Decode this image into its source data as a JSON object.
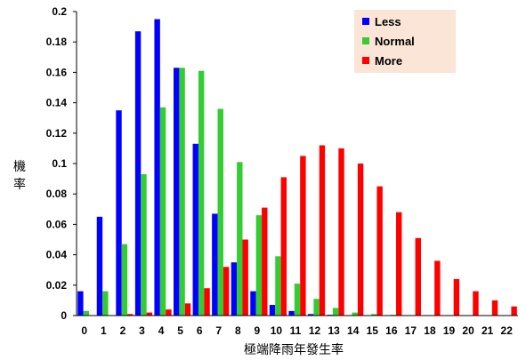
{
  "chart_data": {
    "type": "bar",
    "title": "",
    "xlabel": "極端降雨年發生率",
    "ylabel": "機率",
    "ylim": [
      0,
      0.2
    ],
    "yticks": [
      0,
      0.02,
      0.04,
      0.06,
      0.08,
      0.1,
      0.12,
      0.14,
      0.16,
      0.18,
      0.2
    ],
    "ytick_labels": [
      "0",
      "0.02",
      "0.04",
      "0.06",
      "0.08",
      "0.1",
      "0.12",
      "0.14",
      "0.16",
      "0.18",
      "0.2"
    ],
    "categories": [
      "0",
      "1",
      "2",
      "3",
      "4",
      "5",
      "6",
      "7",
      "8",
      "9",
      "10",
      "11",
      "12",
      "13",
      "14",
      "15",
      "16",
      "17",
      "18",
      "19",
      "20",
      "21",
      "22"
    ],
    "grid": false,
    "legend_position": "top-right",
    "legend_bg": "#fbe5d6",
    "series": [
      {
        "name": "Less",
        "color": "#0000ff",
        "values": [
          0.016,
          0.065,
          0.135,
          0.187,
          0.195,
          0.163,
          0.113,
          0.067,
          0.035,
          0.016,
          0.007,
          0.003,
          0.001,
          0.0005,
          0,
          0,
          0,
          0,
          0,
          0,
          0,
          0,
          0
        ]
      },
      {
        "name": "Normal",
        "color": "#33cc33",
        "values": [
          0.003,
          0.016,
          0.047,
          0.093,
          0.137,
          0.163,
          0.161,
          0.136,
          0.101,
          0.066,
          0.039,
          0.021,
          0.011,
          0.005,
          0.002,
          0.001,
          0.0005,
          0,
          0,
          0,
          0,
          0,
          0
        ]
      },
      {
        "name": "More",
        "color": "#ff0000",
        "values": [
          0,
          0,
          0.001,
          0.002,
          0.004,
          0.008,
          0.018,
          0.032,
          0.05,
          0.071,
          0.091,
          0.105,
          0.112,
          0.11,
          0.1,
          0.085,
          0.068,
          0.051,
          0.036,
          0.024,
          0.016,
          0.01,
          0.006
        ]
      }
    ]
  }
}
